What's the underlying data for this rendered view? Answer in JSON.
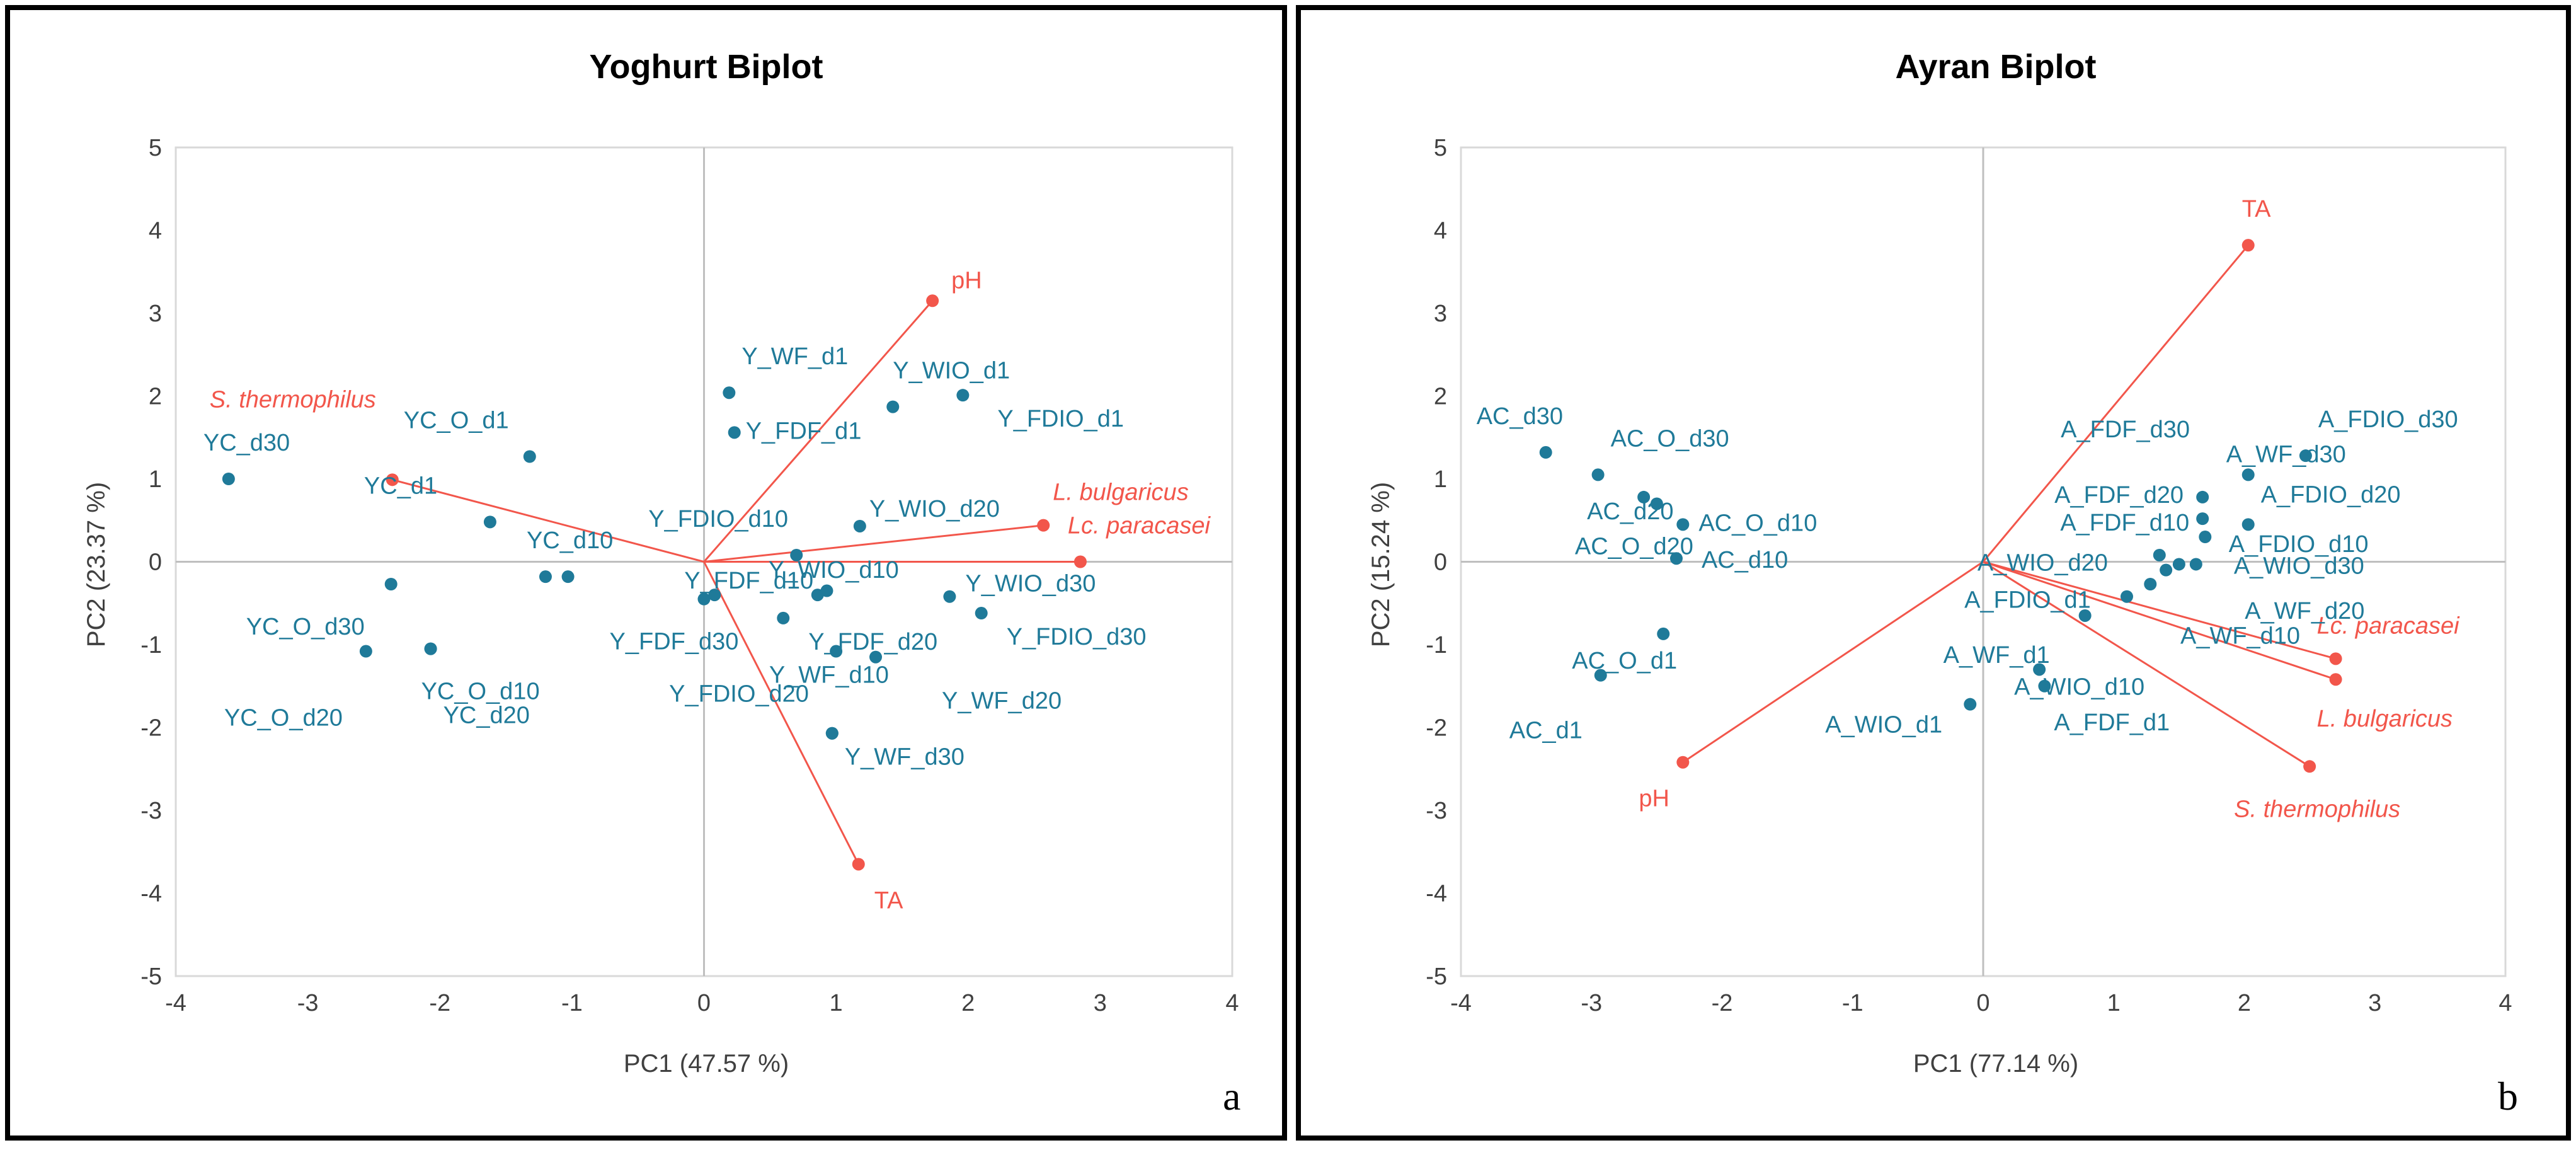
{
  "colors": {
    "points": "#1f7a99",
    "vectors": "#f2564b",
    "gridline": "#d9d9d9",
    "axis": "#bfbfbf"
  },
  "chart_data": [
    {
      "type": "scatter",
      "title": "Yoghurt Biplot",
      "xlabel": "PC1 (47.57 %)",
      "ylabel": "PC2 (23.37 %)",
      "xlim": [
        -4,
        4
      ],
      "ylim": [
        -5,
        5
      ],
      "xticks": [
        "-4",
        "-3",
        "-2",
        "-1",
        "0",
        "1",
        "2",
        "3",
        "4"
      ],
      "yticks": [
        "5",
        "4",
        "3",
        "2",
        "1",
        "0",
        "-1",
        "-2",
        "-3",
        "-4",
        "-5"
      ],
      "panel_letter": "a",
      "points": [
        {
          "label": "YC_d30",
          "x": -3.6,
          "y": 1.0
        },
        {
          "label": "YC_O_d1",
          "x": -1.32,
          "y": 1.27
        },
        {
          "label": "YC_d1",
          "x": -1.62,
          "y": 0.48
        },
        {
          "label": "YC_d10",
          "x": -1.2,
          "y": -0.18
        },
        {
          "label": "YC_d10",
          "x": -1.03,
          "y": -0.18
        },
        {
          "label": "YC_O_d30",
          "x": -2.37,
          "y": -0.27
        },
        {
          "label": "YC_O_d10",
          "x": -2.07,
          "y": -1.05
        },
        {
          "label": "YC_O_d20",
          "x": -2.56,
          "y": -1.08
        },
        {
          "label": "YC_d20",
          "x": -2.07,
          "y": -1.05
        },
        {
          "label": "Y_WF_d1",
          "x": 0.19,
          "y": 2.04
        },
        {
          "label": "Y_FDF_d1",
          "x": 0.23,
          "y": 1.56
        },
        {
          "label": "Y_WIO_d1",
          "x": 1.43,
          "y": 1.87
        },
        {
          "label": "Y_FDIO_d1",
          "x": 1.96,
          "y": 2.01
        },
        {
          "label": "Y_FDIO_d10",
          "x": 0.7,
          "y": 0.08
        },
        {
          "label": "Y_WIO_d20",
          "x": 1.18,
          "y": 0.43
        },
        {
          "label": "Y_FDF_d10",
          "x": 0.08,
          "y": -0.4
        },
        {
          "label": "Y_FDF_d30",
          "x": 0.0,
          "y": -0.45
        },
        {
          "label": "Y_WIO_d10",
          "x": 0.86,
          "y": -0.4
        },
        {
          "label": "Y_WIO_d10",
          "x": 0.93,
          "y": -0.35
        },
        {
          "label": "Y_FDF_d20",
          "x": 0.6,
          "y": -0.68
        },
        {
          "label": "Y_FDIO_d20",
          "x": 1.0,
          "y": -1.08
        },
        {
          "label": "Y_WF_d20",
          "x": 1.3,
          "y": -1.15
        },
        {
          "label": "Y_WIO_d30",
          "x": 1.86,
          "y": -0.42
        },
        {
          "label": "Y_FDIO_d30",
          "x": 2.1,
          "y": -0.62
        },
        {
          "label": "Y_WF_d10",
          "x": 0.97,
          "y": -2.07
        },
        {
          "label": "Y_WF_d30",
          "x": 0.97,
          "y": -2.07
        }
      ],
      "vectors": [
        {
          "label": "pH",
          "x": 1.73,
          "y": 3.15,
          "italic": false
        },
        {
          "label": "S. thermophilus",
          "x": -2.36,
          "y": 0.99,
          "italic": true
        },
        {
          "label": "L. bulgaricus",
          "x": 2.57,
          "y": 0.44,
          "italic": true
        },
        {
          "label": "Lc. paracasei",
          "x": 2.85,
          "y": 0.0,
          "italic": true
        },
        {
          "label": "TA",
          "x": 1.17,
          "y": -3.65,
          "italic": false
        }
      ]
    },
    {
      "type": "scatter",
      "title": "Ayran Biplot",
      "xlabel": "PC1 (77.14 %)",
      "ylabel": "PC2 (15.24 %)",
      "xlim": [
        -4,
        4
      ],
      "ylim": [
        -5,
        5
      ],
      "xticks": [
        "-4",
        "-3",
        "-2",
        "-1",
        "0",
        "1",
        "2",
        "3",
        "4"
      ],
      "yticks": [
        "5",
        "4",
        "3",
        "2",
        "1",
        "0",
        "-1",
        "-2",
        "-3",
        "-4",
        "-5"
      ],
      "panel_letter": "b",
      "points": [
        {
          "label": "AC_d30",
          "x": -3.35,
          "y": 1.32
        },
        {
          "label": "AC_O_d30",
          "x": -2.95,
          "y": 1.05
        },
        {
          "label": "AC_d20",
          "x": -2.6,
          "y": 0.78
        },
        {
          "label": "AC_O_d20",
          "x": -2.5,
          "y": 0.7
        },
        {
          "label": "AC_O_d10",
          "x": -2.3,
          "y": 0.45
        },
        {
          "label": "AC_d10",
          "x": -2.35,
          "y": 0.04
        },
        {
          "label": "AC_O_d1",
          "x": -2.45,
          "y": -0.87
        },
        {
          "label": "AC_d1",
          "x": -2.93,
          "y": -1.37
        },
        {
          "label": "A_FDF_d30",
          "x": 1.68,
          "y": 0.78
        },
        {
          "label": "A_FDIO_d30",
          "x": 2.47,
          "y": 1.28
        },
        {
          "label": "A_WF_d30",
          "x": 2.03,
          "y": 1.05
        },
        {
          "label": "A_FDF_d20",
          "x": 1.68,
          "y": 0.52
        },
        {
          "label": "A_FDIO_d20",
          "x": 2.03,
          "y": 0.45
        },
        {
          "label": "A_FDF_d10",
          "x": 1.7,
          "y": 0.3
        },
        {
          "label": "A_FDIO_d10",
          "x": 1.35,
          "y": 0.08
        },
        {
          "label": "A_WIO_d20",
          "x": 1.5,
          "y": -0.03
        },
        {
          "label": "A_WIO_d30",
          "x": 1.63,
          "y": -0.03
        },
        {
          "label": "A_FDIO_d1",
          "x": 1.4,
          "y": -0.1
        },
        {
          "label": "A_WF_d20",
          "x": 1.28,
          "y": -0.27
        },
        {
          "label": "A_WF_d10",
          "x": 1.1,
          "y": -0.42
        },
        {
          "label": "A_WF_d1",
          "x": 0.78,
          "y": -0.65
        },
        {
          "label": "A_WIO_d10",
          "x": 0.43,
          "y": -1.3
        },
        {
          "label": "A_FDF_d1",
          "x": 0.47,
          "y": -1.5
        },
        {
          "label": "A_WIO_d1",
          "x": -0.1,
          "y": -1.72
        }
      ],
      "vectors": [
        {
          "label": "TA",
          "x": 2.03,
          "y": 3.82,
          "italic": false
        },
        {
          "label": "Lc. paracasei",
          "x": 2.7,
          "y": -1.17,
          "italic": true
        },
        {
          "label": "L. bulgaricus",
          "x": 2.7,
          "y": -1.42,
          "italic": true
        },
        {
          "label": "S. thermophilus",
          "x": 2.5,
          "y": -2.47,
          "italic": true
        },
        {
          "label": "pH",
          "x": -2.3,
          "y": -2.42,
          "italic": false
        }
      ]
    }
  ]
}
